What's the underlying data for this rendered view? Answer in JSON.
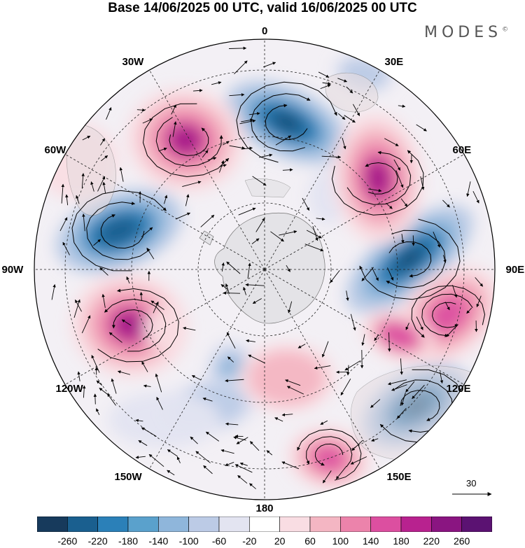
{
  "title": "Base 14/06/2025 00 UTC, valid 16/06/2025 00 UTC",
  "logo": {
    "text": "MODES",
    "mark": "©"
  },
  "map": {
    "projection": "south-polar-stereographic",
    "longitude_labels": [
      "0",
      "30E",
      "60E",
      "90E",
      "120E",
      "150E",
      "180",
      "150W",
      "120W",
      "90W",
      "60W",
      "30W"
    ],
    "reference_vector": {
      "value": "30"
    }
  },
  "colorbar": {
    "ticks": [
      "-260",
      "-220",
      "-180",
      "-140",
      "-100",
      "-60",
      "-20",
      "20",
      "60",
      "100",
      "140",
      "180",
      "220",
      "260"
    ],
    "colors": [
      "#173a5c",
      "#1a5f8f",
      "#2b80b8",
      "#5aa1cc",
      "#8fb6db",
      "#bccbe6",
      "#e3e4f1",
      "#ffffff",
      "#f9dde3",
      "#f4b6c3",
      "#ec83ab",
      "#dc4fa0",
      "#b8228f",
      "#8a1581",
      "#5b1272"
    ]
  }
}
